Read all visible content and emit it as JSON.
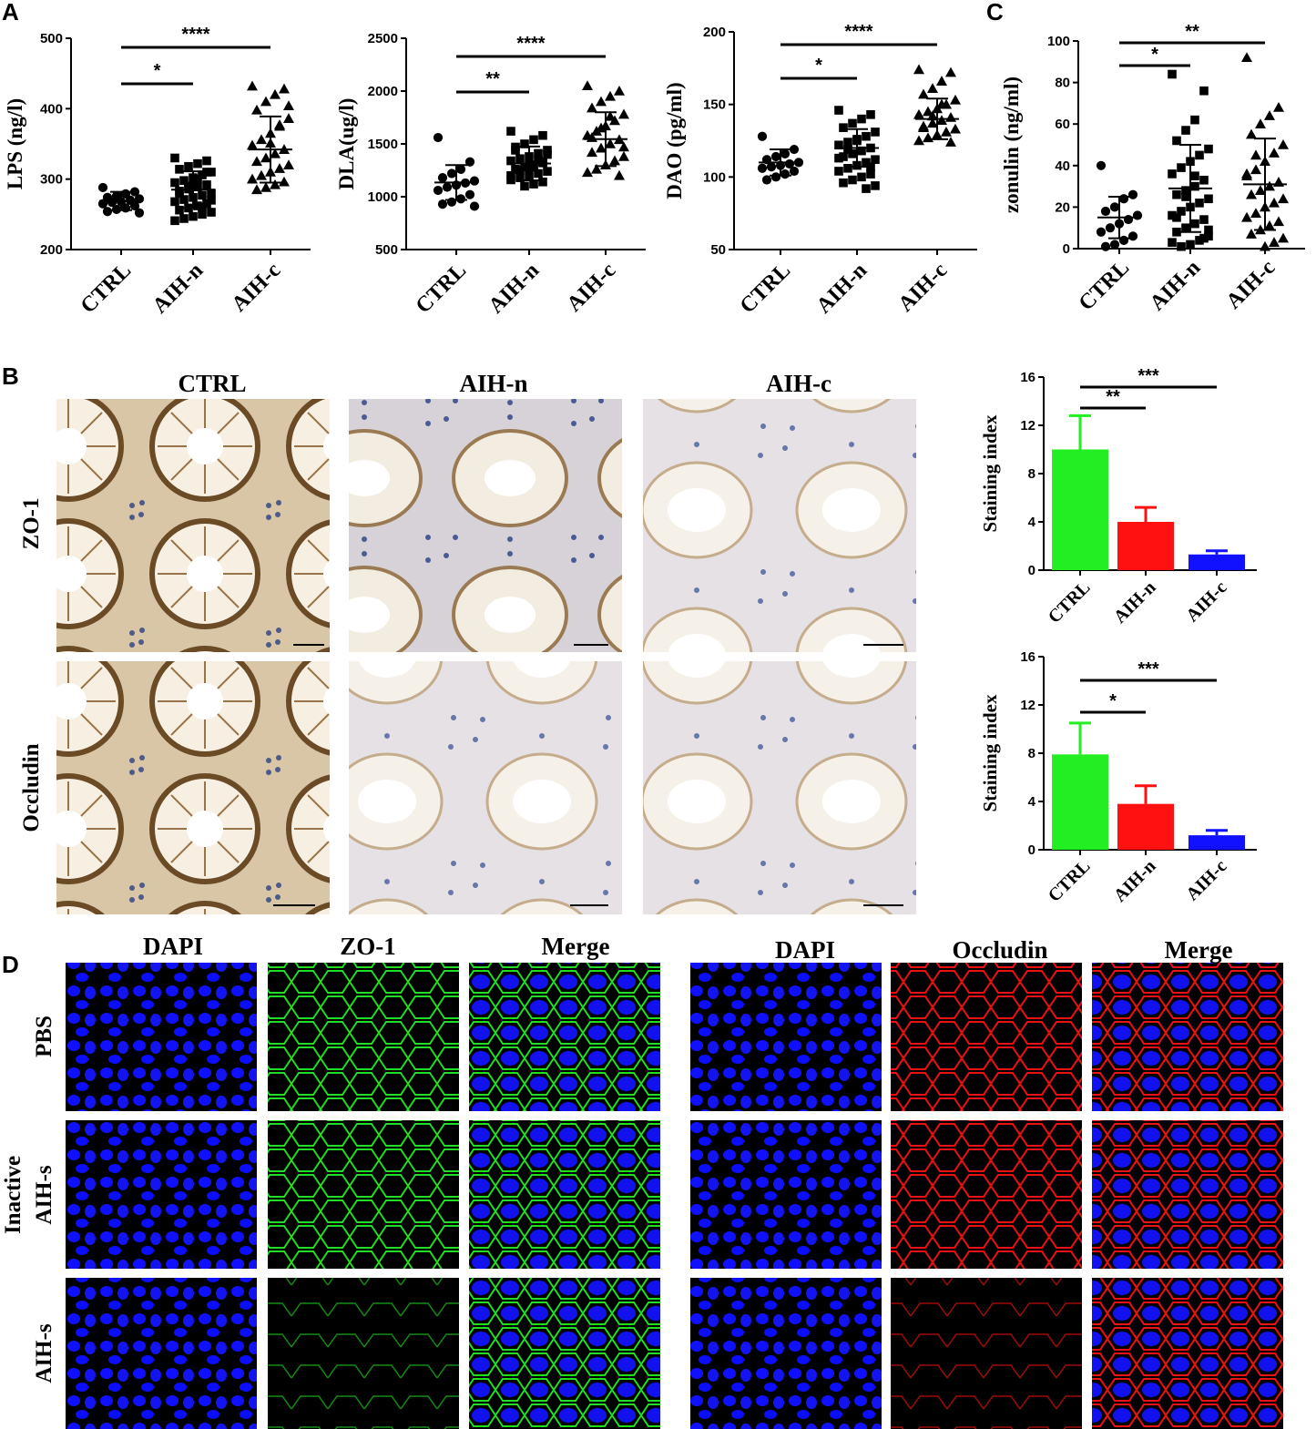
{
  "panel_labels": {
    "A": "A",
    "B": "B",
    "C": "C",
    "D": "D"
  },
  "panel_b": {
    "columns": [
      "CTRL",
      "AIH-n",
      "AIH-c"
    ],
    "rows": [
      "ZO-1",
      "Occludin"
    ]
  },
  "panel_d": {
    "columns_left": [
      "DAPI",
      "ZO-1",
      "Merge"
    ],
    "columns_right": [
      "DAPI",
      "Occludin",
      "Merge"
    ],
    "rows": [
      "PBS",
      "Inactive AIH-s",
      "AIH-s"
    ],
    "row_label_inactive_line1": "Inactive",
    "row_label_inactive_line2": "AIH-s",
    "colors": {
      "dapi": "#1010ff",
      "zo1": "#22dd22",
      "occludin": "#ee1111"
    }
  },
  "chart_data": [
    {
      "id": "lps",
      "type": "scatter",
      "ylabel": "LPS (ng/l)",
      "categories": [
        "CTRL",
        "AIH-n",
        "AIH-c"
      ],
      "ylim": [
        200,
        500
      ],
      "yticks": [
        200,
        300,
        400,
        500
      ],
      "marker_shapes": [
        "circle",
        "square",
        "triangle"
      ],
      "mean": [
        269,
        285,
        342
      ],
      "sd": [
        13,
        26,
        47
      ],
      "points": [
        [
          288,
          282,
          279,
          276,
          274,
          272,
          270,
          268,
          267,
          265,
          262,
          259,
          257,
          254,
          252
        ],
        [
          330,
          326,
          322,
          318,
          314,
          310,
          306,
          302,
          298,
          295,
          292,
          289,
          286,
          283,
          280,
          277,
          274,
          271,
          268,
          265,
          262,
          259,
          256,
          253,
          250,
          247,
          244,
          241,
          310,
          300,
          290,
          280,
          270,
          260
        ],
        [
          432,
          428,
          420,
          410,
          398,
          386,
          375,
          365,
          356,
          348,
          342,
          336,
          330,
          325,
          320,
          315,
          310,
          305,
          300,
          296,
          292,
          288,
          285,
          404,
          377,
          351
        ]
      ],
      "significance": [
        {
          "from": 0,
          "to": 1,
          "label": "*"
        },
        {
          "from": 0,
          "to": 2,
          "label": "****"
        }
      ]
    },
    {
      "id": "dla",
      "type": "scatter",
      "ylabel": "DLA(ug/l)",
      "categories": [
        "CTRL",
        "AIH-n",
        "AIH-c"
      ],
      "ylim": [
        500,
        2500
      ],
      "yticks": [
        500,
        1000,
        1500,
        2000,
        2500
      ],
      "marker_shapes": [
        "circle",
        "square",
        "triangle"
      ],
      "mean": [
        1135,
        1315,
        1545
      ],
      "sd": [
        165,
        160,
        255
      ],
      "points": [
        [
          1560,
          1330,
          1260,
          1220,
          1180,
          1150,
          1130,
          1110,
          1090,
          1060,
          1020,
          980,
          950,
          930,
          910
        ],
        [
          1620,
          1580,
          1540,
          1500,
          1470,
          1440,
          1410,
          1380,
          1360,
          1340,
          1320,
          1300,
          1280,
          1260,
          1240,
          1220,
          1200,
          1180,
          1160,
          1140,
          1120,
          1100,
          1440,
          1400,
          1350,
          1300,
          1250,
          1200,
          1330,
          1280
        ],
        [
          2050,
          2000,
          1950,
          1900,
          1840,
          1780,
          1720,
          1670,
          1620,
          1580,
          1540,
          1500,
          1460,
          1420,
          1380,
          1340,
          1300,
          1260,
          1230,
          1200,
          1760,
          1650,
          1560,
          1470
        ]
      ],
      "significance": [
        {
          "from": 0,
          "to": 1,
          "label": "**"
        },
        {
          "from": 0,
          "to": 2,
          "label": "****"
        }
      ]
    },
    {
      "id": "dao",
      "type": "scatter",
      "ylabel": "DAO (pg/ml)",
      "categories": [
        "CTRL",
        "AIH-n",
        "AIH-c"
      ],
      "ylim": [
        50,
        200
      ],
      "yticks": [
        50,
        100,
        150,
        200
      ],
      "marker_shapes": [
        "circle",
        "square",
        "triangle"
      ],
      "mean": [
        110,
        120,
        140
      ],
      "sd": [
        9,
        13,
        14
      ],
      "points": [
        [
          128,
          119,
          116,
          114,
          112,
          110,
          109,
          108,
          107,
          106,
          104,
          102,
          100,
          98
        ],
        [
          146,
          143,
          140,
          137,
          134,
          131,
          128,
          126,
          124,
          122,
          120,
          118,
          116,
          114,
          112,
          110,
          108,
          106,
          104,
          102,
          100,
          98,
          96,
          94,
          92,
          125,
          119,
          113,
          107
        ],
        [
          174,
          172,
          166,
          161,
          157,
          153,
          150,
          147,
          145,
          143,
          141,
          139,
          137,
          135,
          133,
          131,
          129,
          127,
          125,
          124,
          150,
          142,
          134
        ]
      ],
      "significance": [
        {
          "from": 0,
          "to": 1,
          "label": "*"
        },
        {
          "from": 0,
          "to": 2,
          "label": "****"
        }
      ]
    },
    {
      "id": "zonulin",
      "type": "scatter",
      "ylabel": "zonulin (ng/ml)",
      "categories": [
        "CTRL",
        "AIH-n",
        "AIH-c"
      ],
      "ylim": [
        0,
        100
      ],
      "yticks": [
        0,
        20,
        40,
        60,
        80,
        100
      ],
      "marker_shapes": [
        "circle",
        "square",
        "triangle"
      ],
      "mean": [
        15,
        29,
        31
      ],
      "sd": [
        10,
        21,
        22
      ],
      "points": [
        [
          40,
          26,
          24,
          20,
          18,
          16,
          14,
          12,
          10,
          8,
          6,
          4,
          2,
          1
        ],
        [
          84,
          76,
          62,
          57,
          52,
          48,
          45,
          42,
          39,
          36,
          33,
          30,
          28,
          26,
          24,
          22,
          20,
          18,
          16,
          14,
          12,
          10,
          8,
          6,
          4,
          2,
          1,
          3,
          5,
          35,
          25,
          15,
          9
        ],
        [
          92,
          68,
          64,
          60,
          55,
          50,
          46,
          42,
          38,
          35,
          32,
          30,
          28,
          26,
          24,
          22,
          20,
          17,
          15,
          13,
          11,
          9,
          7,
          5,
          3,
          1,
          45,
          36
        ]
      ],
      "significance": [
        {
          "from": 0,
          "to": 1,
          "label": "*"
        },
        {
          "from": 0,
          "to": 2,
          "label": "**"
        }
      ]
    },
    {
      "id": "zo1_index",
      "type": "bar",
      "ylabel": "Staining index",
      "categories": [
        "CTRL",
        "AIH-n",
        "AIH-c"
      ],
      "values": [
        10.0,
        4.0,
        1.3
      ],
      "errors": [
        2.8,
        1.2,
        0.3
      ],
      "colors": [
        "#22ee22",
        "#ff1111",
        "#1111ff"
      ],
      "ylim": [
        0,
        16
      ],
      "yticks": [
        0,
        4,
        8,
        12,
        16
      ],
      "significance": [
        {
          "from": 0,
          "to": 1,
          "label": "**"
        },
        {
          "from": 0,
          "to": 2,
          "label": "***"
        }
      ]
    },
    {
      "id": "occludin_index",
      "type": "bar",
      "ylabel": "Staining index",
      "categories": [
        "CTRL",
        "AIH-n",
        "AIH-c"
      ],
      "values": [
        7.9,
        3.8,
        1.2
      ],
      "errors": [
        2.6,
        1.5,
        0.4
      ],
      "colors": [
        "#22ee22",
        "#ff1111",
        "#1111ff"
      ],
      "ylim": [
        0,
        16
      ],
      "yticks": [
        0,
        4,
        8,
        12,
        16
      ],
      "significance": [
        {
          "from": 0,
          "to": 1,
          "label": "*"
        },
        {
          "from": 0,
          "to": 2,
          "label": "***"
        }
      ]
    }
  ]
}
